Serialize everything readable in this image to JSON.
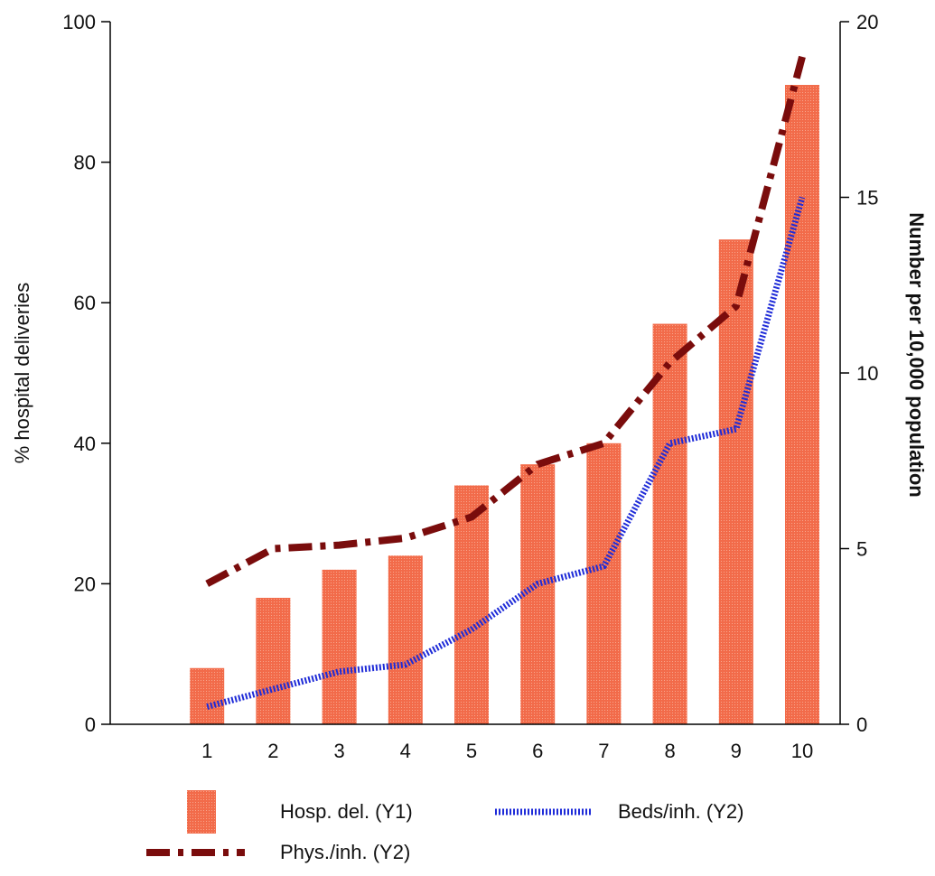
{
  "chart_data": {
    "type": "bar",
    "categories": [
      "1",
      "2",
      "3",
      "4",
      "5",
      "6",
      "7",
      "8",
      "9",
      "10"
    ],
    "y1_label": "% hospital deliveries",
    "y2_label": "Number per 10,000 population",
    "y1lim": [
      0,
      100
    ],
    "y2lim": [
      0,
      20
    ],
    "y1_ticks": [
      "0",
      "20",
      "40",
      "60",
      "80",
      "100"
    ],
    "y2_ticks": [
      "0",
      "5",
      "10",
      "15",
      "20"
    ],
    "grid": false,
    "legend_position": "bottom",
    "series": [
      {
        "name": "Hosp. del. (Y1)",
        "type": "bar",
        "axis": "y1",
        "color": "#f26b4a",
        "values": [
          8,
          18,
          22,
          24,
          34,
          37,
          40,
          57,
          69,
          91
        ]
      },
      {
        "name": "Beds/inh. (Y2)",
        "type": "line",
        "axis": "y2",
        "style": "dotted",
        "color": "#1e2bd8",
        "values": [
          0.5,
          1.0,
          1.5,
          1.7,
          2.7,
          4.0,
          4.5,
          8.0,
          8.4,
          15.0
        ]
      },
      {
        "name": "Phys./inh. (Y2)",
        "type": "line",
        "axis": "y2",
        "style": "dash-dot",
        "color": "#7a0c0c",
        "values": [
          4.0,
          5.0,
          5.1,
          5.3,
          5.9,
          7.4,
          8.0,
          10.3,
          11.9,
          19.0
        ]
      }
    ]
  }
}
